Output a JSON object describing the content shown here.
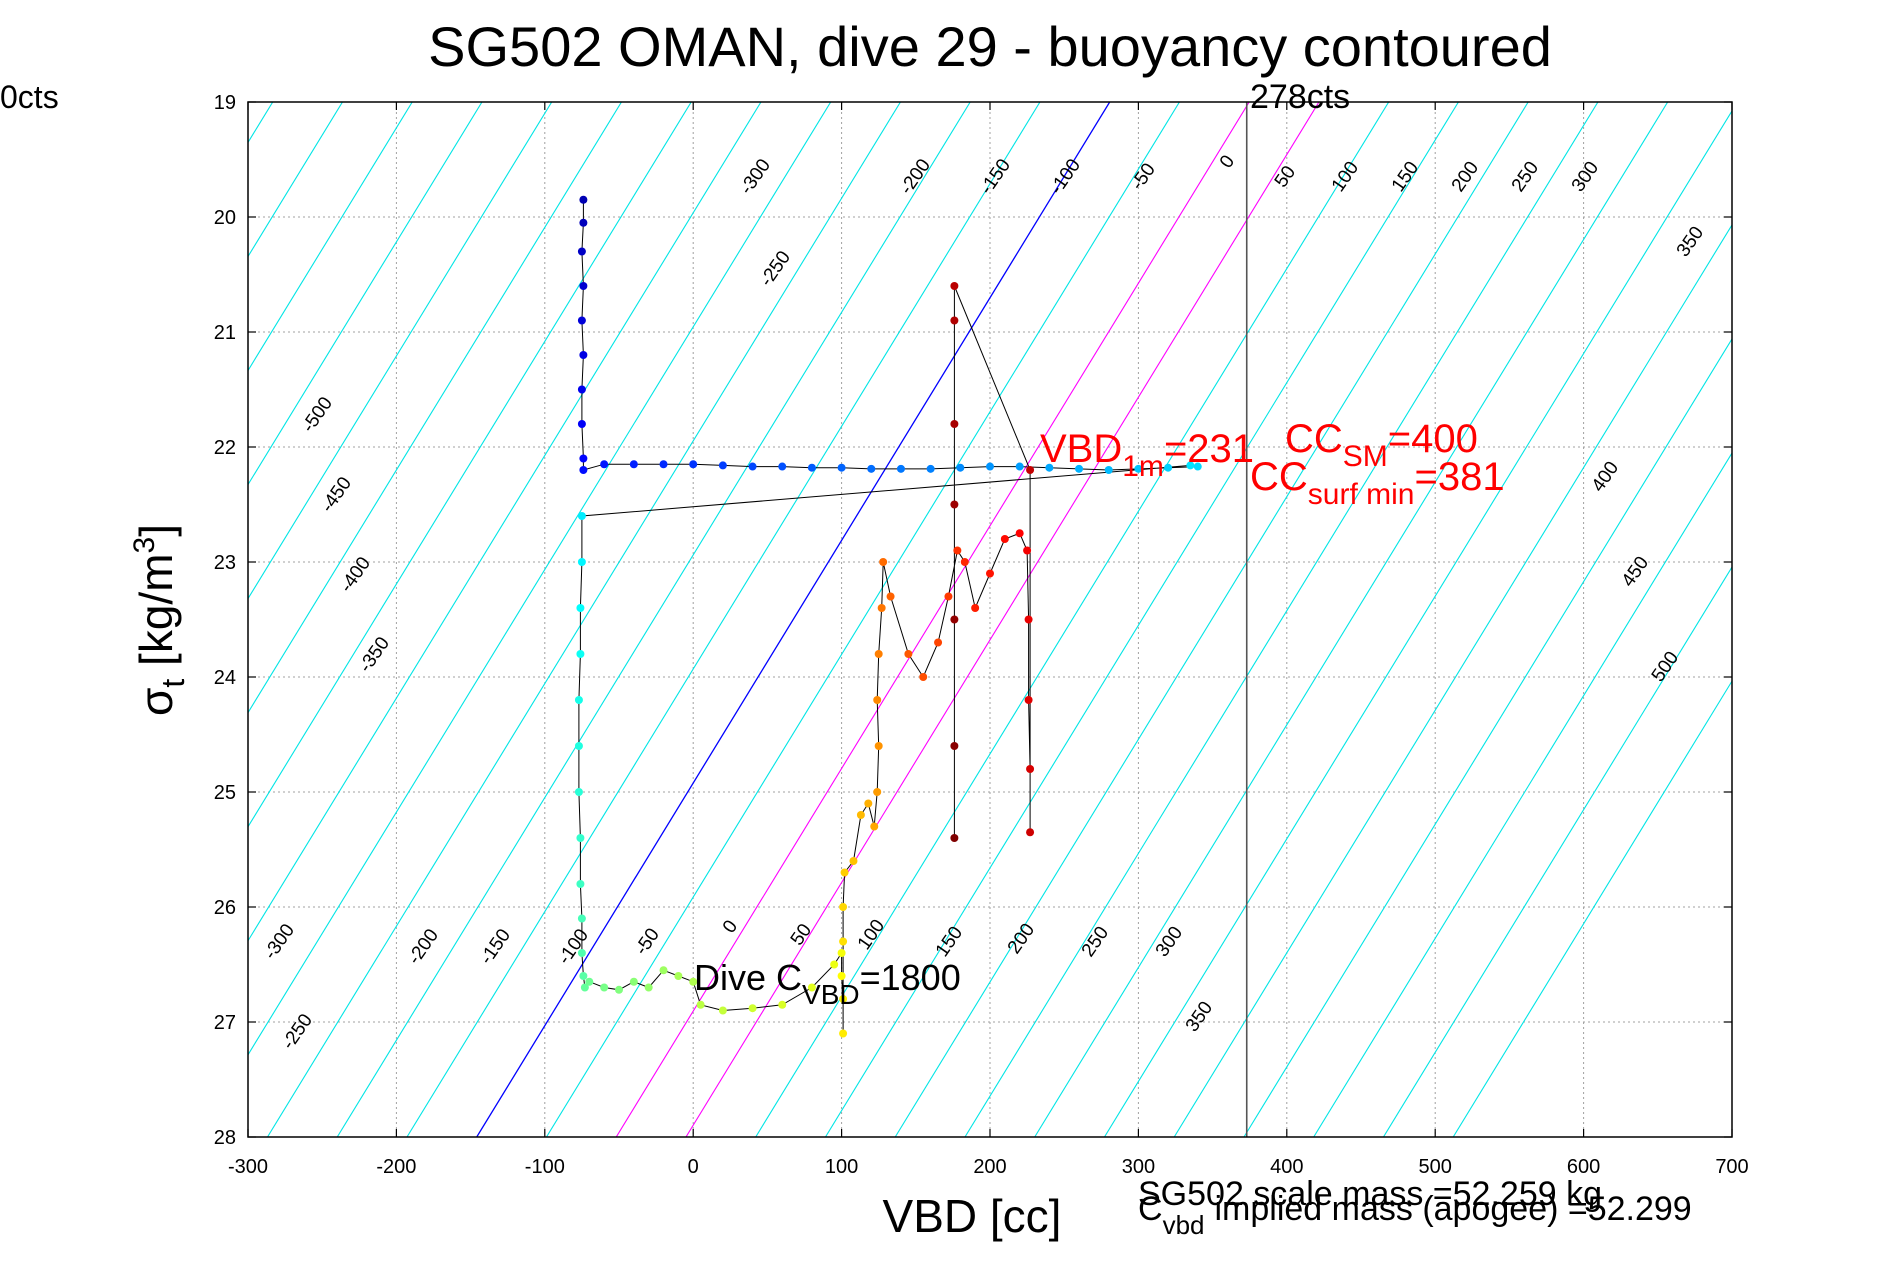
{
  "chart_data": {
    "type": "scatter",
    "title": "SG502 OMAN, dive 29 - buoyancy contoured",
    "xlabel": "VBD [cc]",
    "ylabel_main": "σ",
    "ylabel_sub": "t",
    "ylabel_tail": " [kg/m",
    "ylabel_sup": "3",
    "ylabel_close": "]",
    "xlim": [
      -300,
      700
    ],
    "ylim": [
      19,
      28
    ],
    "y_reversed": true,
    "grid": true,
    "xticks": [
      -300,
      -200,
      -100,
      0,
      100,
      200,
      300,
      400,
      500,
      600,
      700
    ],
    "yticks": [
      19,
      20,
      21,
      22,
      23,
      24,
      25,
      26,
      27,
      28
    ],
    "clipped_left_label": "0cts",
    "vertical_line": {
      "x": 373,
      "label": "278cts"
    },
    "contours_upper_labels": [
      "-500",
      "-450",
      "-400",
      "-350",
      "-300",
      "-250",
      "-200",
      "-150",
      "-100",
      "-50",
      "0",
      "50",
      "100",
      "150",
      "200",
      "250",
      "300",
      "350",
      "400",
      "450",
      "500"
    ],
    "contours_lower_labels": [
      "-300",
      "-250",
      "-200",
      "-150",
      "-100",
      "-50",
      "0",
      "50",
      "100",
      "150",
      "200",
      "250",
      "300",
      "350"
    ],
    "annotations": {
      "vbd_main": "VBD",
      "vbd_sub": "1m",
      "vbd_value": "=231",
      "ccsm_main": "CC",
      "ccsm_sub": "SM",
      "ccsm_value": "=400",
      "ccsurf_main": "CC",
      "ccsurf_sub": "surf min",
      "ccsurf_value": "=381",
      "dive_main": "Dive C",
      "dive_sub": "VBD",
      "dive_value": "=1800",
      "scale_mass": "SG502 scale mass =52.259 kg",
      "cvbd_main": "C",
      "cvbd_sub": "vbd",
      "implied_mass": "implied mass (apogee) =52.299"
    },
    "colors": {
      "contour": "#00e5e5",
      "zero_line": "#0000ff",
      "positive_lines": "#ff00ff",
      "annotation_red": "#ff0000",
      "trace": "#000000"
    },
    "series": [
      {
        "data": [
          [
            -74,
            19.85
          ],
          [
            -74,
            20.05
          ],
          [
            -75,
            20.3
          ],
          [
            -74,
            20.6
          ],
          [
            -75,
            20.9
          ],
          [
            -74,
            21.2
          ],
          [
            -75,
            21.5
          ],
          [
            -75,
            21.8
          ],
          [
            -74,
            22.1
          ],
          [
            -74,
            22.2
          ],
          [
            -60,
            22.15
          ],
          [
            -40,
            22.15
          ],
          [
            -20,
            22.15
          ],
          [
            0,
            22.15
          ],
          [
            20,
            22.16
          ],
          [
            40,
            22.17
          ],
          [
            60,
            22.17
          ],
          [
            80,
            22.18
          ],
          [
            100,
            22.18
          ],
          [
            120,
            22.19
          ],
          [
            140,
            22.19
          ],
          [
            160,
            22.19
          ],
          [
            180,
            22.18
          ],
          [
            200,
            22.17
          ],
          [
            220,
            22.17
          ],
          [
            240,
            22.18
          ],
          [
            260,
            22.19
          ],
          [
            280,
            22.2
          ],
          [
            300,
            22.19
          ],
          [
            320,
            22.18
          ],
          [
            340,
            22.17
          ],
          [
            335,
            22.16
          ],
          [
            -75,
            22.6
          ],
          [
            -75,
            23.0
          ],
          [
            -76,
            23.4
          ],
          [
            -76,
            23.8
          ],
          [
            -77,
            24.2
          ],
          [
            -77,
            24.6
          ],
          [
            -77,
            25.0
          ],
          [
            -76,
            25.4
          ],
          [
            -76,
            25.8
          ],
          [
            -75,
            26.1
          ],
          [
            -75,
            26.4
          ],
          [
            -74,
            26.6
          ],
          [
            -73,
            26.7
          ],
          [
            -70,
            26.65
          ],
          [
            -60,
            26.7
          ],
          [
            -50,
            26.72
          ],
          [
            -40,
            26.65
          ],
          [
            -30,
            26.7
          ],
          [
            -20,
            26.55
          ],
          [
            -10,
            26.6
          ],
          [
            0,
            26.65
          ],
          [
            5,
            26.85
          ],
          [
            20,
            26.9
          ],
          [
            40,
            26.88
          ],
          [
            60,
            26.85
          ],
          [
            80,
            26.7
          ],
          [
            95,
            26.5
          ],
          [
            100,
            26.4
          ],
          [
            100,
            26.6
          ],
          [
            101,
            26.8
          ],
          [
            101,
            27.1
          ],
          [
            101,
            26.3
          ],
          [
            101,
            26.0
          ],
          [
            102,
            25.7
          ],
          [
            108,
            25.6
          ],
          [
            113,
            25.2
          ],
          [
            118,
            25.1
          ],
          [
            122,
            25.3
          ],
          [
            124,
            25.0
          ],
          [
            125,
            24.6
          ],
          [
            124,
            24.2
          ],
          [
            125,
            23.8
          ],
          [
            127,
            23.4
          ],
          [
            128,
            23.0
          ],
          [
            133,
            23.3
          ],
          [
            145,
            23.8
          ],
          [
            155,
            24.0
          ],
          [
            165,
            23.7
          ],
          [
            172,
            23.3
          ],
          [
            178,
            22.9
          ],
          [
            183,
            23.0
          ],
          [
            190,
            23.4
          ],
          [
            200,
            23.1
          ],
          [
            210,
            22.8
          ],
          [
            220,
            22.75
          ],
          [
            225,
            22.9
          ],
          [
            226,
            23.5
          ],
          [
            226,
            24.2
          ],
          [
            227,
            24.8
          ],
          [
            227,
            25.35
          ],
          [
            227,
            22.2
          ],
          [
            176,
            20.6
          ],
          [
            176,
            20.9
          ],
          [
            176,
            21.8
          ],
          [
            176,
            22.5
          ],
          [
            176,
            23.5
          ],
          [
            176,
            24.6
          ],
          [
            176,
            25.4
          ]
        ]
      }
    ]
  }
}
